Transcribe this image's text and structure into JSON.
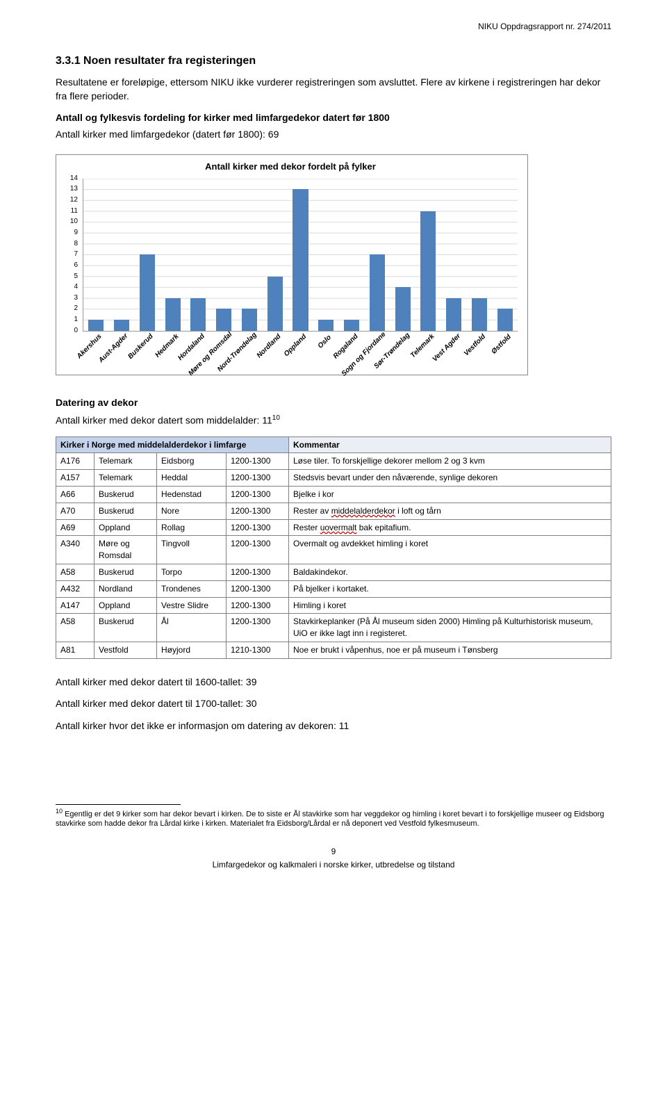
{
  "header_right": "NIKU Oppdragsrapport nr. 274/2011",
  "section_title": "3.3.1 Noen resultater fra registeringen",
  "para1": "Resultatene er foreløpige, ettersom NIKU ikke vurderer registreringen som avsluttet. Flere av kirkene i registreringen har dekor fra flere perioder.",
  "subhead_bold": "Antall og fylkesvis fordeling for kirker med limfargedekor datert før 1800",
  "subhead": "Antall kirker med limfargedekor (datert før 1800): 69",
  "chart": {
    "title": "Antall kirker med dekor fordelt på fylker",
    "ymax": 14,
    "ytick_step": 1,
    "bar_color": "#4f81bd",
    "background_color": "#ffffff",
    "grid_color": "#d9d9d9",
    "axis_color": "#999999",
    "label_fontsize": 10,
    "title_fontsize": 13,
    "categories": [
      "Akershus",
      "Aust-Agder",
      "Buskerud",
      "Hedmark",
      "Hordaland",
      "Møre og Romsdal",
      "Nord-Trøndelag",
      "Nordland",
      "Oppland",
      "Oslo",
      "Rogaland",
      "Sogn og Fjordane",
      "Sør-Trøndelag",
      "Telemark",
      "Vest Agder",
      "Vestfold",
      "Østfold"
    ],
    "values": [
      1,
      1,
      7,
      3,
      3,
      2,
      2,
      5,
      13,
      1,
      1,
      7,
      4,
      11,
      3,
      3,
      2
    ]
  },
  "datering_title": "Datering av dekor",
  "datering_line": "Antall kirker med dekor datert som middelalder: 11",
  "datering_foot": "10",
  "table2": {
    "header_left": "Kirker i Norge med middelalderdekor i limfarge",
    "header_right": "Kommentar",
    "col_widths": [
      "55px",
      "90px",
      "100px",
      "90px",
      "auto"
    ],
    "rows": [
      [
        "A176",
        "Telemark",
        "Eidsborg",
        "1200-1300",
        "Løse tiler. To forskjellige dekorer mellom 2 og 3 kvm"
      ],
      [
        "A157",
        "Telemark",
        "Heddal",
        "1200-1300",
        "Stedsvis bevart under den nåværende, synlige dekoren"
      ],
      [
        "A66",
        "Buskerud",
        "Hedenstad",
        "1200-1300",
        "Bjelke i kor"
      ],
      [
        "A70",
        "Buskerud",
        "Nore",
        "1200-1300",
        "Rester av <span class=\"underline-red\">middelalderdekor</span> i loft og tårn"
      ],
      [
        "A69",
        "Oppland",
        "Rollag",
        "1200-1300",
        "Rester <span class=\"underline-red\">uovermalt</span> bak epitafium."
      ],
      [
        "A340",
        "Møre og Romsdal",
        "Tingvoll",
        "1200-1300",
        "Overmalt og avdekket himling i koret"
      ],
      [
        "A58",
        "Buskerud",
        "Torpo",
        "1200-1300",
        "Baldakindekor."
      ],
      [
        "A432",
        "Nordland",
        "Trondenes",
        "1200-1300",
        "På bjelker i kortaket."
      ],
      [
        "A147",
        "Oppland",
        "Vestre Slidre",
        "1200-1300",
        "Himling i koret"
      ],
      [
        "A58",
        "Buskerud",
        "Ål",
        "1200-1300",
        "Stavkirkeplanker (På Ål museum siden 2000) Himling på Kulturhistorisk museum, UiO er ikke lagt inn i registeret."
      ],
      [
        "A81",
        "Vestfold",
        "Høyjord",
        "1210-1300",
        "Noe er brukt i våpenhus, noe er på museum i Tønsberg"
      ]
    ]
  },
  "line_1600": "Antall kirker med dekor datert til 1600-tallet: 39",
  "line_1700": "Antall kirker med dekor datert til 1700-tallet: 30",
  "line_info": "Antall kirker hvor det ikke er informasjon om datering av dekoren: 11",
  "footnote_num": "10",
  "footnote_text": " Egentlig er det 9 kirker som har dekor bevart i kirken. De to siste er Ål stavkirke som har veggdekor og himling i koret bevart i to forskjellige museer og Eidsborg stavkirke som hadde dekor fra Lårdal kirke i kirken. Materialet fra Eidsborg/Lårdal er nå deponert ved Vestfold fylkesmuseum.",
  "page_number": "9",
  "footer": "Limfargedekor og kalkmaleri i norske kirker, utbredelse og tilstand"
}
